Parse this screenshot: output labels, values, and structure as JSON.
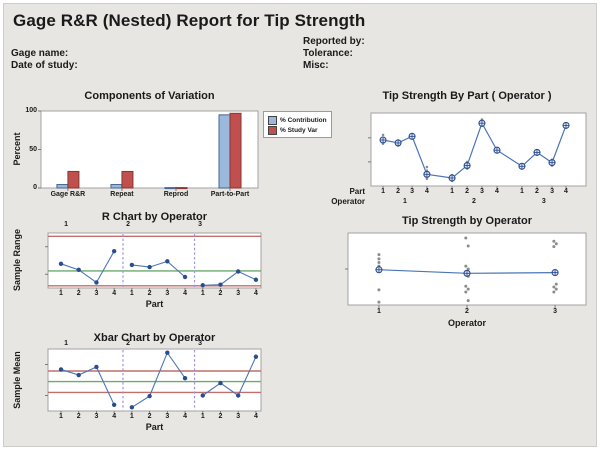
{
  "header": {
    "title": "Gage R&R (Nested) Report for Tip Strength",
    "fields_left": [
      "Gage name:",
      "Date of study:"
    ],
    "fields_right": [
      "Reported by:",
      "Tolerance:",
      "Misc:"
    ]
  },
  "colors": {
    "background": "#e8e6e2",
    "plot_bg": "#ffffff",
    "plot_border": "#a3a3a3",
    "bar_blue_fill": "#9bb8dd",
    "bar_blue_border": "#45658f",
    "bar_red_fill": "#c0504d",
    "bar_red_border": "#8a3533",
    "point_blue": "#2b4d8e",
    "line_blue": "#4a76b5",
    "marker_fill": "#e8eef7",
    "jitter_gray": "#8c8c8c",
    "control_red": "#c0706c",
    "center_green": "#6da96d",
    "separator_purple": "#a193dd"
  },
  "chart_data": [
    {
      "id": "cov",
      "type": "bar",
      "title": "Components of Variation",
      "ylabel": "Percent",
      "ylim": [
        0,
        100
      ],
      "yticks": [
        "0",
        "50",
        "100"
      ],
      "categories": [
        "Gage R&R",
        "Repeat",
        "Reprod",
        "Part-to-Part"
      ],
      "series": [
        {
          "name": "% Contribution",
          "values": [
            4.5,
            4.5,
            0.5,
            95
          ]
        },
        {
          "name": "% Study Var",
          "values": [
            21.5,
            21.5,
            0.5,
            97
          ]
        }
      ],
      "legend_position": "right"
    },
    {
      "id": "by_part",
      "type": "line",
      "title": "Tip Strength By Part ( Operator )",
      "axis_row_labels": [
        "Part",
        "Operator"
      ],
      "part_labels": [
        "1",
        "2",
        "3",
        "4",
        "1",
        "2",
        "3",
        "4",
        "1",
        "2",
        "3",
        "4"
      ],
      "operator_labels": [
        "1",
        "2",
        "3"
      ],
      "y_axis": "unlabeled (relative tip strength, 0-1 of plot height)",
      "means_rel": [
        0.63,
        0.59,
        0.68,
        0.16,
        0.11,
        0.28,
        0.86,
        0.49,
        0.27,
        0.46,
        0.32,
        0.83
      ],
      "jitter_rel": [
        [
          0.07,
          -0.05
        ],
        [
          0.035,
          -0.035
        ],
        [
          0.025,
          -0.025
        ],
        [
          0.1,
          0.05,
          -0.06
        ],
        [
          0.04,
          -0.04
        ],
        [
          0.05,
          -0.04
        ],
        [
          0.05,
          -0.035
        ],
        [
          0.03,
          -0.03
        ],
        [
          0.025,
          -0.025
        ],
        [
          0.03,
          -0.03
        ],
        [
          0.04,
          -0.04
        ],
        [
          0.025,
          -0.025
        ]
      ]
    },
    {
      "id": "r_chart",
      "type": "line",
      "title": "R Chart by Operator",
      "ylabel": "Sample Range",
      "xlabel": "Part",
      "operator_labels": [
        "1",
        "2",
        "3"
      ],
      "part_labels": [
        "1",
        "2",
        "3",
        "4",
        "1",
        "2",
        "3",
        "4",
        "1",
        "2",
        "3",
        "4"
      ],
      "y_axis": "unlabeled (relative sample range, 0-1 of plot height)",
      "values_rel": [
        0.44,
        0.33,
        0.1,
        0.67,
        0.42,
        0.38,
        0.485,
        0.2,
        0.05,
        0.06,
        0.3,
        0.15
      ],
      "ucl_rel": 0.94,
      "center_rel": 0.31,
      "lcl_rel": 0.04
    },
    {
      "id": "by_operator",
      "type": "scatter",
      "title": "Tip Strength by Operator",
      "xlabel": "Operator",
      "operator_labels": [
        "1",
        "2",
        "3"
      ],
      "y_axis": "unlabeled (relative tip strength, 0-1 of plot height)",
      "means_rel": [
        0.49,
        0.44,
        0.45
      ],
      "points_rel": [
        [
          0.7,
          0.64,
          0.59,
          0.54,
          0.21,
          0.04
        ],
        [
          0.93,
          0.82,
          0.54,
          0.5,
          0.46,
          0.4,
          0.26,
          0.22,
          0.18,
          0.06
        ],
        [
          0.885,
          0.85,
          0.81,
          0.29,
          0.25,
          0.22,
          0.18
        ]
      ]
    },
    {
      "id": "xbar",
      "type": "line",
      "title": "Xbar Chart by Operator",
      "ylabel": "Sample Mean",
      "xlabel": "Part",
      "operator_labels": [
        "1",
        "2",
        "3"
      ],
      "part_labels": [
        "1",
        "2",
        "3",
        "4",
        "1",
        "2",
        "3",
        "4",
        "1",
        "2",
        "3",
        "4"
      ],
      "y_axis": "unlabeled (relative sample mean, 0-1 of plot height)",
      "values_rel": [
        0.67,
        0.58,
        0.71,
        0.1,
        0.06,
        0.24,
        0.94,
        0.53,
        0.25,
        0.45,
        0.25,
        0.875
      ],
      "ucl_rel": 0.645,
      "center_rel": 0.474,
      "lcl_rel": 0.3
    }
  ]
}
